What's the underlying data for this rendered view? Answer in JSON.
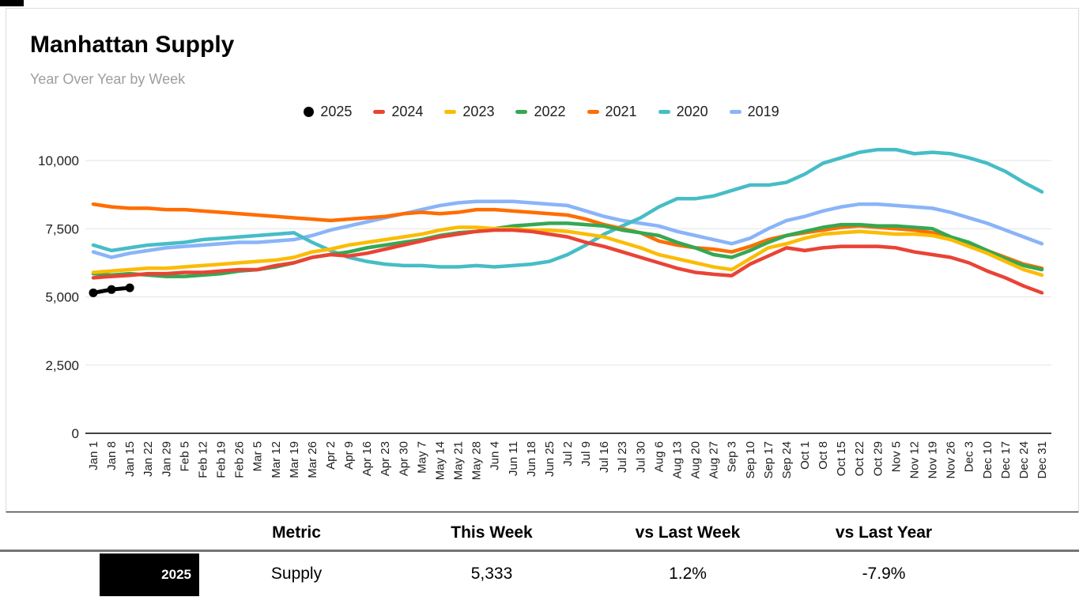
{
  "header": {
    "title": "Manhattan Supply",
    "subtitle": "Year Over Year by Week"
  },
  "chart_data": {
    "type": "line",
    "title": "Manhattan Supply",
    "subtitle": "Year Over Year by Week",
    "grid": true,
    "legend_position": "top",
    "ylim": [
      0,
      10000
    ],
    "yticks": [
      {
        "value": 0,
        "label": "0"
      },
      {
        "value": 2500,
        "label": "2,500"
      },
      {
        "value": 5000,
        "label": "5,000"
      },
      {
        "value": 7500,
        "label": "7,500"
      },
      {
        "value": 10000,
        "label": "10,000"
      }
    ],
    "x": [
      "Jan 1",
      "Jan 8",
      "Jan 15",
      "Jan 22",
      "Jan 29",
      "Feb 5",
      "Feb 12",
      "Feb 19",
      "Feb 26",
      "Mar 5",
      "Mar 12",
      "Mar 19",
      "Mar 26",
      "Apr 2",
      "Apr 9",
      "Apr 16",
      "Apr 23",
      "Apr 30",
      "May 7",
      "May 14",
      "May 21",
      "May 28",
      "Jun 4",
      "Jun 11",
      "Jun 18",
      "Jun 25",
      "Jul 2",
      "Jul 9",
      "Jul 16",
      "Jul 23",
      "Jul 30",
      "Aug 6",
      "Aug 13",
      "Aug 20",
      "Aug 27",
      "Sep 3",
      "Sep 10",
      "Sep 17",
      "Sep 24",
      "Oct 1",
      "Oct 8",
      "Oct 15",
      "Oct 22",
      "Oct 29",
      "Nov 5",
      "Nov 12",
      "Nov 19",
      "Nov 26",
      "Dec 3",
      "Dec 10",
      "Dec 17",
      "Dec 24",
      "Dec 31"
    ],
    "series": [
      {
        "name": "2025",
        "color": "#000000",
        "marker": "circle",
        "values": [
          5150,
          5270,
          5333
        ]
      },
      {
        "name": "2024",
        "color": "#EA4335",
        "values": [
          5700,
          5750,
          5790,
          5850,
          5850,
          5900,
          5900,
          5950,
          6000,
          6000,
          6150,
          6250,
          6450,
          6550,
          6500,
          6600,
          6750,
          6900,
          7050,
          7200,
          7300,
          7400,
          7450,
          7450,
          7400,
          7300,
          7200,
          7000,
          6850,
          6650,
          6450,
          6250,
          6050,
          5900,
          5830,
          5780,
          6200,
          6500,
          6800,
          6700,
          6800,
          6850,
          6850,
          6850,
          6800,
          6650,
          6550,
          6450,
          6250,
          5950,
          5700,
          5400,
          5150
        ]
      },
      {
        "name": "2023",
        "color": "#FBBC04",
        "values": [
          5900,
          5950,
          6000,
          6050,
          6050,
          6100,
          6150,
          6200,
          6250,
          6300,
          6350,
          6450,
          6650,
          6750,
          6900,
          7000,
          7100,
          7200,
          7300,
          7450,
          7550,
          7550,
          7500,
          7500,
          7450,
          7450,
          7400,
          7300,
          7200,
          7000,
          6800,
          6550,
          6400,
          6250,
          6100,
          6000,
          6400,
          6800,
          6950,
          7150,
          7300,
          7350,
          7400,
          7350,
          7300,
          7300,
          7250,
          7100,
          6850,
          6600,
          6300,
          6000,
          5800
        ]
      },
      {
        "name": "2022",
        "color": "#34A853",
        "values": [
          5850,
          5800,
          5850,
          5800,
          5750,
          5750,
          5800,
          5850,
          5950,
          6000,
          6100,
          6250,
          6450,
          6550,
          6650,
          6800,
          6900,
          7000,
          7100,
          7250,
          7350,
          7400,
          7500,
          7600,
          7650,
          7700,
          7700,
          7650,
          7600,
          7450,
          7350,
          7250,
          7000,
          6800,
          6550,
          6450,
          6700,
          7000,
          7250,
          7400,
          7550,
          7650,
          7650,
          7600,
          7600,
          7550,
          7500,
          7200,
          7000,
          6700,
          6400,
          6150,
          6000
        ]
      },
      {
        "name": "2021",
        "color": "#FF6D01",
        "values": [
          8400,
          8300,
          8250,
          8250,
          8200,
          8200,
          8150,
          8100,
          8050,
          8000,
          7950,
          7900,
          7850,
          7800,
          7850,
          7900,
          7950,
          8050,
          8100,
          8050,
          8100,
          8200,
          8200,
          8150,
          8100,
          8050,
          8000,
          7850,
          7650,
          7500,
          7350,
          7050,
          6900,
          6800,
          6750,
          6650,
          6850,
          7100,
          7250,
          7350,
          7450,
          7550,
          7600,
          7550,
          7500,
          7450,
          7350,
          7150,
          6950,
          6700,
          6450,
          6200,
          6050
        ]
      },
      {
        "name": "2020",
        "color": "#46BDC6",
        "values": [
          6900,
          6700,
          6800,
          6900,
          6950,
          7000,
          7100,
          7150,
          7200,
          7250,
          7300,
          7350,
          7000,
          6700,
          6450,
          6300,
          6200,
          6150,
          6150,
          6100,
          6100,
          6150,
          6100,
          6150,
          6200,
          6300,
          6550,
          6900,
          7300,
          7600,
          7900,
          8300,
          8600,
          8600,
          8700,
          8900,
          9100,
          9100,
          9200,
          9500,
          9900,
          10100,
          10300,
          10400,
          10400,
          10250,
          10300,
          10250,
          10100,
          9900,
          9600,
          9200,
          8850
        ]
      },
      {
        "name": "2019",
        "color": "#8AB4F8",
        "values": [
          6650,
          6450,
          6600,
          6700,
          6800,
          6850,
          6900,
          6950,
          7000,
          7000,
          7050,
          7100,
          7250,
          7450,
          7600,
          7750,
          7900,
          8050,
          8200,
          8350,
          8450,
          8500,
          8500,
          8500,
          8450,
          8400,
          8350,
          8150,
          7950,
          7800,
          7700,
          7600,
          7400,
          7250,
          7100,
          6950,
          7150,
          7500,
          7800,
          7950,
          8150,
          8300,
          8400,
          8400,
          8350,
          8300,
          8250,
          8100,
          7900,
          7700,
          7450,
          7200,
          6950
        ]
      }
    ]
  },
  "table": {
    "headers": [
      "Metric",
      "This Week",
      "vs Last Week",
      "vs Last Year"
    ],
    "rows": [
      {
        "year": "2025",
        "metric": "Supply",
        "this_week": "5,333",
        "vs_last_week": "1.2%",
        "vs_last_year": "-7.9%"
      }
    ]
  }
}
